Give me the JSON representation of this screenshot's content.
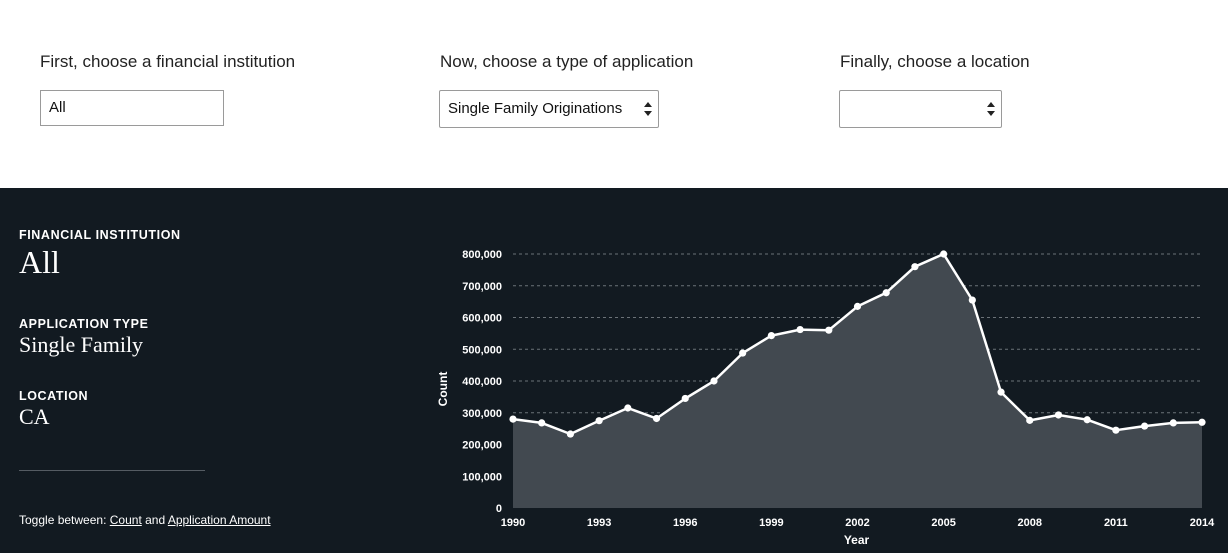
{
  "controls": {
    "institution": {
      "label": "First, choose a financial institution",
      "value": "All"
    },
    "application": {
      "label": "Now, choose a type of application",
      "value": "Single Family Originations"
    },
    "location": {
      "label": "Finally, choose a location",
      "value": ""
    }
  },
  "summary": {
    "institution_caption": "FINANCIAL INSTITUTION",
    "institution_value": "All",
    "type_caption": "APPLICATION TYPE",
    "type_value": "Single Family",
    "location_caption": "LOCATION",
    "location_value": "CA",
    "toggle_prefix": "Toggle between:",
    "toggle_count": "Count",
    "toggle_and": "and",
    "toggle_amount": "Application Amount"
  },
  "colors": {
    "background": "#121a21",
    "area_fill": "#424950",
    "line": "#ffffff"
  },
  "chart_data": {
    "type": "area",
    "xlabel": "Year",
    "ylabel": "Count",
    "ylim": [
      0,
      800000
    ],
    "yticks": [
      0,
      100000,
      200000,
      300000,
      400000,
      500000,
      600000,
      700000,
      800000
    ],
    "ytick_labels": [
      "0",
      "100,000",
      "200,000",
      "300,000",
      "400,000",
      "500,000",
      "600,000",
      "700,000",
      "800,000"
    ],
    "xticks": [
      1990,
      1993,
      1996,
      1999,
      2002,
      2005,
      2008,
      2011,
      2014
    ],
    "grid": true,
    "x": [
      1990,
      1991,
      1992,
      1993,
      1994,
      1995,
      1996,
      1997,
      1998,
      1999,
      2000,
      2001,
      2002,
      2003,
      2004,
      2005,
      2006,
      2007,
      2008,
      2009,
      2010,
      2011,
      2012,
      2013,
      2014
    ],
    "values": [
      280000,
      268000,
      233000,
      275000,
      315000,
      282000,
      345000,
      400000,
      488000,
      543000,
      562000,
      560000,
      635000,
      678000,
      760000,
      800000,
      655000,
      365000,
      276000,
      293000,
      278000,
      245000,
      258000,
      268000,
      270000
    ]
  }
}
